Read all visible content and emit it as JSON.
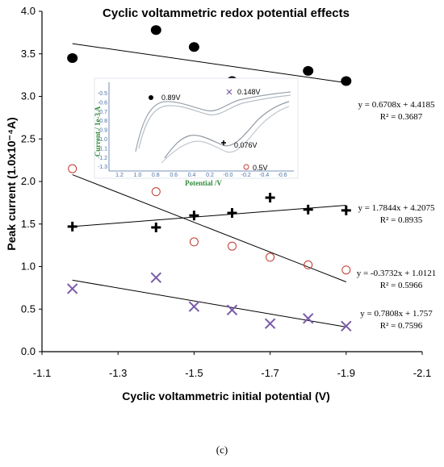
{
  "chart_data": {
    "type": "scatter",
    "title": "Cyclic voltammetric redox potential effects",
    "xlabel": "Cyclic voltammetric initial potential (V)",
    "ylabel": "Peak current (1.0x10⁻⁴A)",
    "xlim": [
      -1.1,
      -2.1
    ],
    "ylim": [
      0.0,
      4.0
    ],
    "x_ticks": [
      "-1.1",
      "-1.3",
      "-1.5",
      "-1.7",
      "-1.9",
      "-2.1"
    ],
    "x_tick_values": [
      -1.1,
      -1.3,
      -1.5,
      -1.7,
      -1.9,
      -2.1
    ],
    "y_ticks": [
      "0.0",
      "0.5",
      "1.0",
      "1.5",
      "2.0",
      "2.5",
      "3.0",
      "3.5",
      "4.0"
    ],
    "y_tick_values": [
      0.0,
      0.5,
      1.0,
      1.5,
      2.0,
      2.5,
      3.0,
      3.5,
      4.0
    ],
    "grid": false,
    "series": [
      {
        "marker": "filled-circle",
        "color": "#000000",
        "x": [
          -1.18,
          -1.4,
          -1.5,
          -1.6,
          -1.7,
          -1.8,
          -1.9
        ],
        "y": [
          3.45,
          3.78,
          3.58,
          3.18,
          3.1,
          3.3,
          3.18
        ],
        "trendline": {
          "slope": 0.6708,
          "intercept": 4.4185
        },
        "equation": "y = 0.6708x + 4.4185",
        "r2": "R² = 0.3687"
      },
      {
        "marker": "plus",
        "color": "#000000",
        "x": [
          -1.18,
          -1.4,
          -1.5,
          -1.6,
          -1.7,
          -1.8,
          -1.9
        ],
        "y": [
          1.47,
          1.46,
          1.6,
          1.63,
          1.81,
          1.67,
          1.66
        ],
        "trendline": {
          "slope": 1.7844,
          "intercept": 4.2075
        },
        "equation": "y = 1.7844x + 4.2075",
        "r2": "R² = 0.8935"
      },
      {
        "marker": "open-circle",
        "color": "#c0392b",
        "x": [
          -1.18,
          -1.4,
          -1.5,
          -1.6,
          -1.7,
          -1.8,
          -1.9
        ],
        "y": [
          2.15,
          1.88,
          1.29,
          1.24,
          1.11,
          1.02,
          0.96
        ],
        "trendline": {
          "slope": -0.3732,
          "intercept": 1.0121
        },
        "equation": "y = -0.3732x + 1.0121",
        "r2": "R² = 0.5966"
      },
      {
        "marker": "x",
        "color": "#7a5aa8",
        "x": [
          -1.18,
          -1.4,
          -1.5,
          -1.6,
          -1.7,
          -1.8,
          -1.9
        ],
        "y": [
          0.74,
          0.87,
          0.53,
          0.49,
          0.33,
          0.39,
          0.3
        ],
        "trendline": {
          "slope": 0.7808,
          "intercept": 1.757
        },
        "equation": "y = 0.7808x + 1.757",
        "r2": "R² = 0.7596"
      }
    ],
    "inset": {
      "ylabel": "Current / 1e-3 A",
      "xlabel": "Potential /V",
      "x_ticks": [
        "1.2",
        "1.0",
        "0.8",
        "0.6",
        "0.4",
        "0.2",
        "-0.0",
        "-0.2",
        "-0.4",
        "-0.6"
      ],
      "y_ticks": [
        "-0.5",
        "-0.6",
        "-0.7",
        "-0.8",
        "-0.9",
        "-1.0",
        "-1.1",
        "-1.2",
        "-1.3"
      ],
      "annotations": [
        "0.89V",
        "0.148V",
        "0.076V",
        "0.5V"
      ]
    }
  },
  "caption": "(c)"
}
